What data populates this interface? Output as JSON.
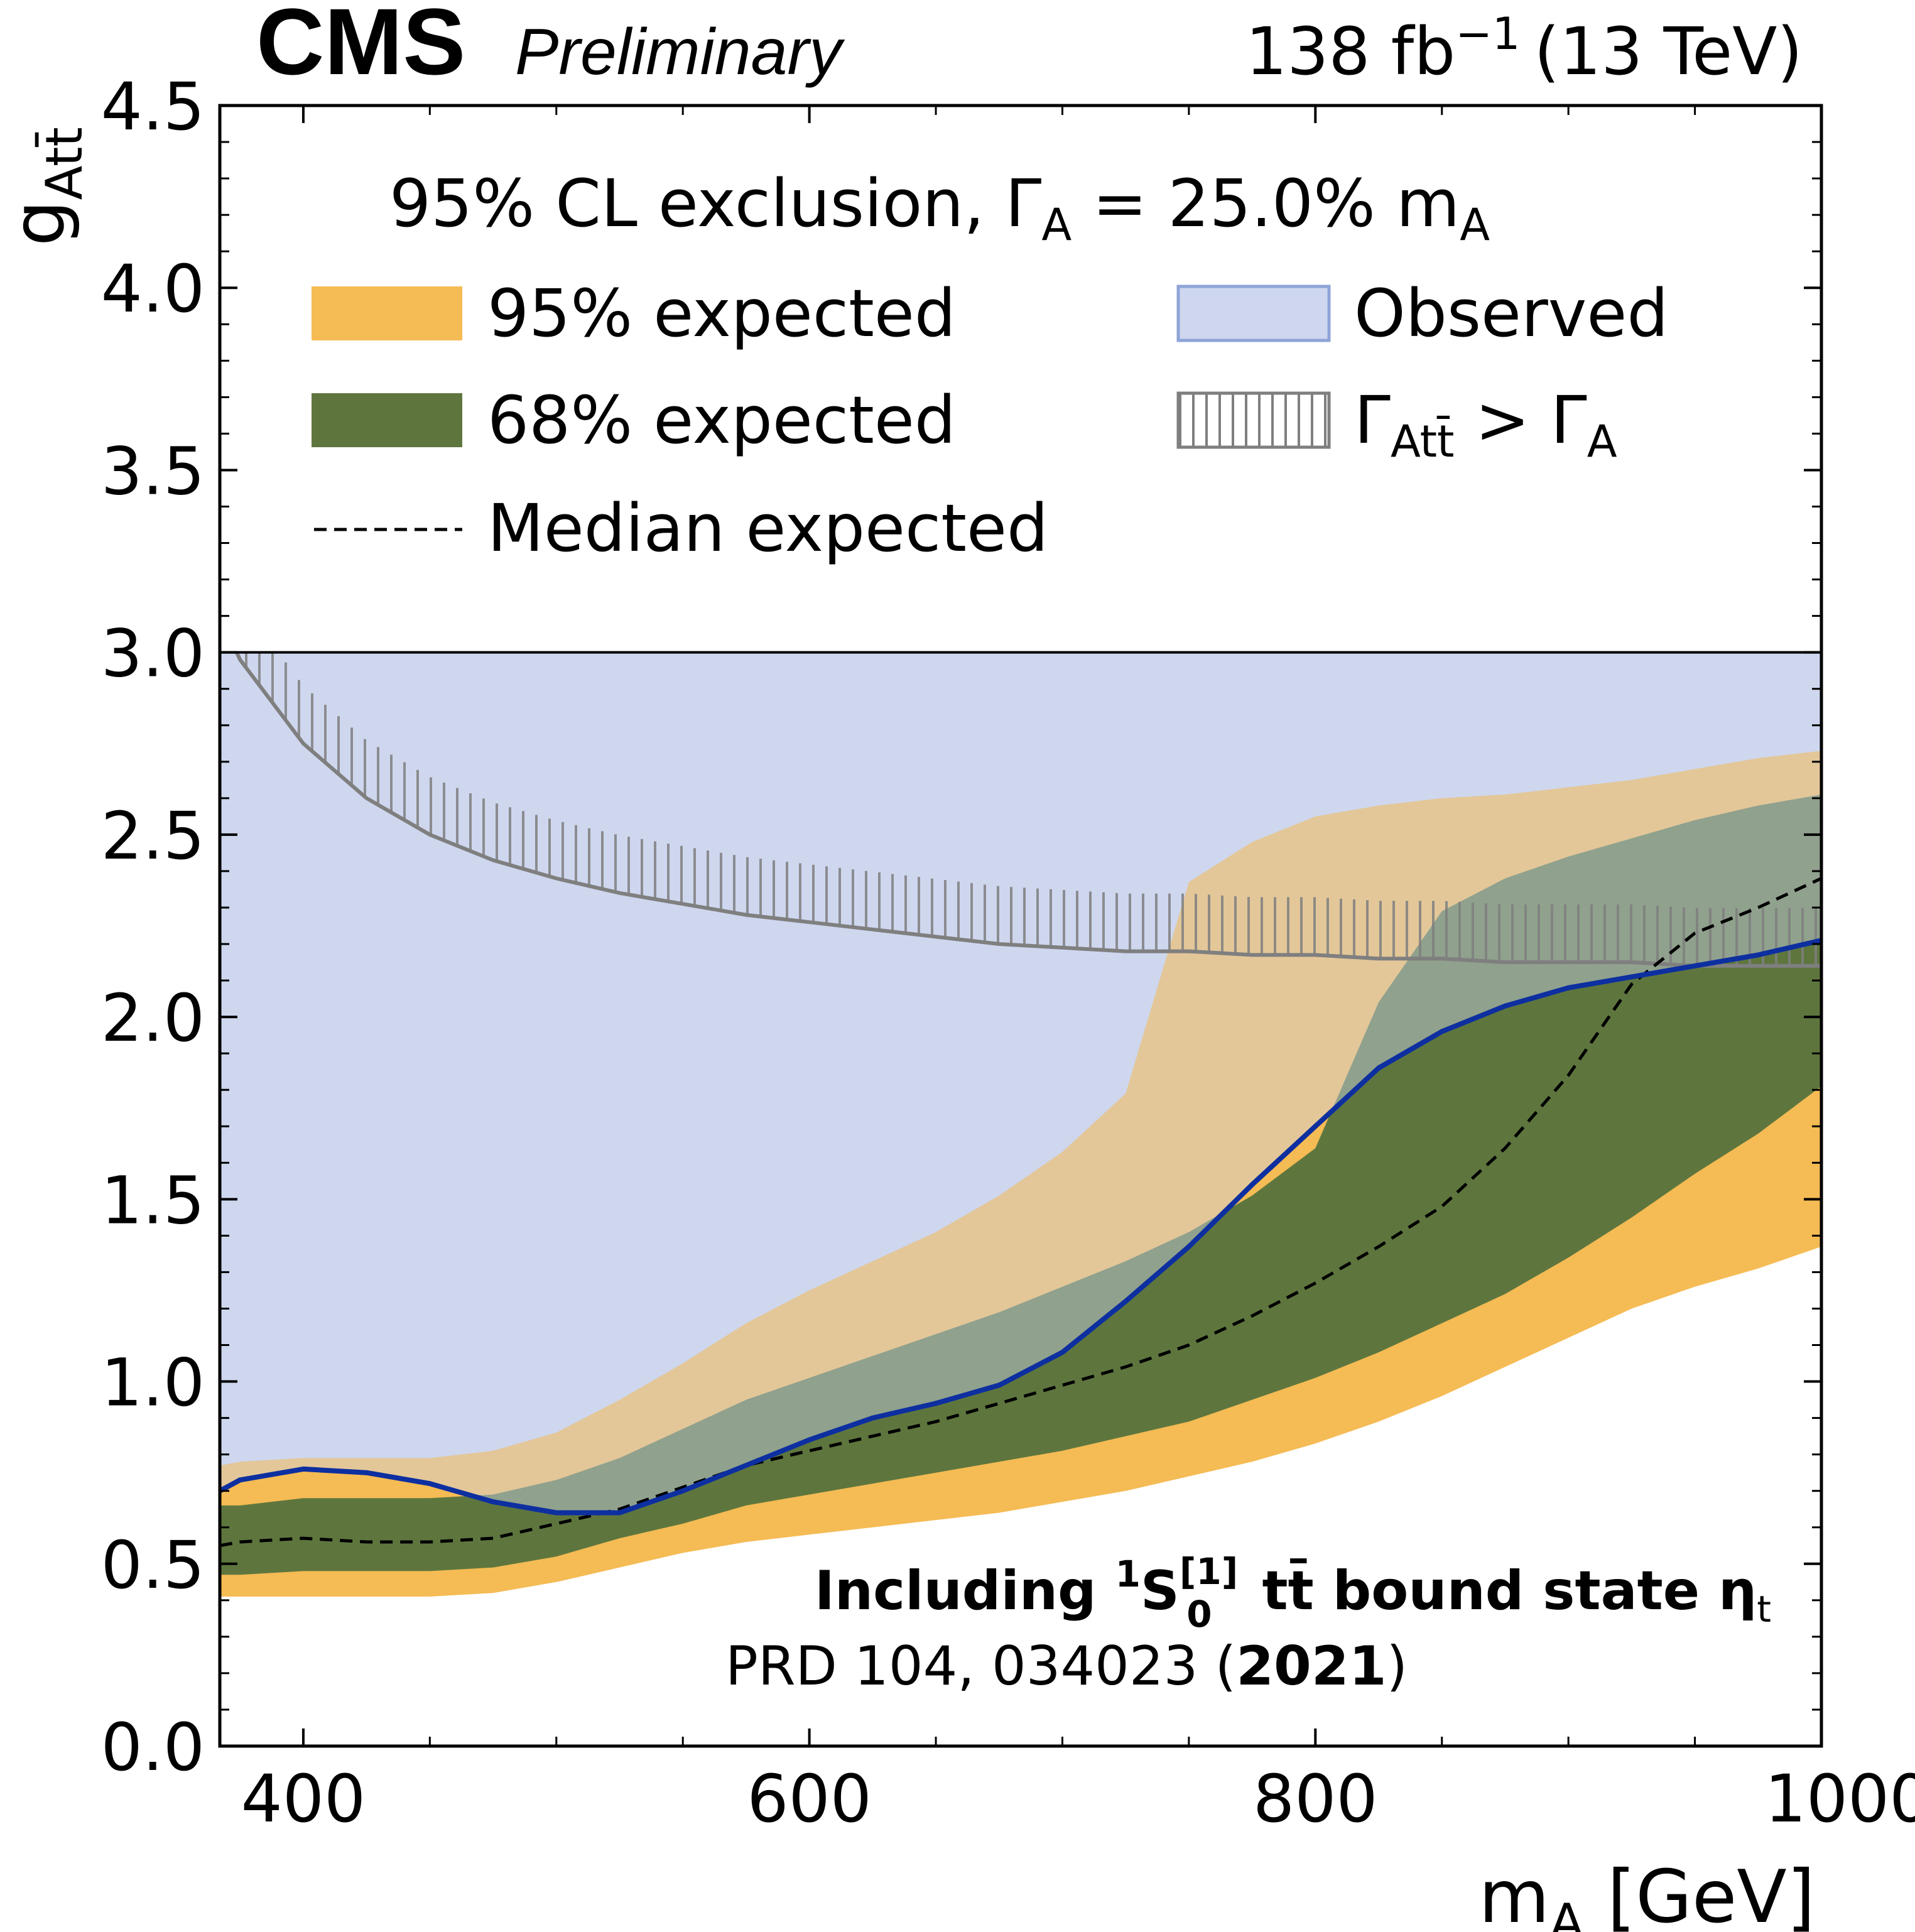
{
  "header": {
    "experiment": "CMS",
    "status": "Preliminary",
    "lumi_base": "138 fb",
    "lumi_exp": "−1",
    "energy": "(13 TeV)"
  },
  "legend": {
    "title_prefix": "95% CL exclusion, Γ",
    "title_sub": "A",
    "title_suffix": " =  25.0% m",
    "title_sub2": "A",
    "entries": {
      "band95": "95% expected",
      "band68": "68% expected",
      "median": "Median expected",
      "observed": "Observed",
      "unphys_prefix": "Γ",
      "unphys_sub": "Att̄",
      "unphys_suffix": " > Γ",
      "unphys_sub2": "A"
    }
  },
  "annotation": {
    "line1_a": "Including ",
    "line1_sup": "1",
    "line1_S": "S",
    "line1_sup2": "[1]",
    "line1_sub": "0",
    "line1_b": " tt̄ bound state η",
    "line1_sub2": "t",
    "line2_a": "PRD 104, 034023 (",
    "line2_bold": "2021",
    "line2_b": ")"
  },
  "axes": {
    "xlabel": "m",
    "xlabel_sub": "A",
    "xlabel_unit": " [GeV]",
    "ylabel": "g",
    "ylabel_sub": "Att̄"
  },
  "colors": {
    "band95": "#f5bb54",
    "band68": "#5e763e",
    "observed_fill": "#ced7ee",
    "observed_line": "#0d2fa0",
    "median_line": "#000000",
    "unphys_line": "#7f7f7f"
  },
  "chart_data": {
    "type": "line",
    "xlim": [
      367,
      1000
    ],
    "ylim": [
      0,
      4.5
    ],
    "x_ticks": [
      "400",
      "600",
      "800",
      "1000"
    ],
    "y_ticks": [
      "0.0",
      "0.5",
      "1.0",
      "1.5",
      "2.0",
      "2.5",
      "3.0",
      "3.5",
      "4.0",
      "4.5"
    ],
    "plot_region_ymax": 3.0,
    "x": [
      367,
      375,
      400,
      425,
      450,
      475,
      500,
      525,
      550,
      575,
      600,
      625,
      650,
      675,
      700,
      725,
      750,
      775,
      800,
      825,
      850,
      875,
      900,
      925,
      950,
      975,
      1000
    ],
    "expected_95_lower": [
      0.41,
      0.41,
      0.41,
      0.41,
      0.41,
      0.42,
      0.45,
      0.49,
      0.53,
      0.56,
      0.58,
      0.6,
      0.62,
      0.64,
      0.67,
      0.7,
      0.74,
      0.78,
      0.83,
      0.89,
      0.96,
      1.04,
      1.12,
      1.2,
      1.26,
      1.31,
      1.37
    ],
    "expected_68_lower": [
      0.47,
      0.47,
      0.48,
      0.48,
      0.48,
      0.49,
      0.52,
      0.57,
      0.61,
      0.66,
      0.69,
      0.72,
      0.75,
      0.78,
      0.81,
      0.85,
      0.89,
      0.95,
      1.01,
      1.08,
      1.16,
      1.24,
      1.34,
      1.45,
      1.57,
      1.68,
      1.81
    ],
    "median_expected": [
      0.55,
      0.56,
      0.57,
      0.56,
      0.56,
      0.57,
      0.61,
      0.65,
      0.71,
      0.77,
      0.81,
      0.85,
      0.89,
      0.94,
      0.99,
      1.04,
      1.1,
      1.18,
      1.27,
      1.37,
      1.48,
      1.64,
      1.84,
      2.09,
      2.23,
      2.3,
      2.38
    ],
    "expected_68_upper": [
      0.66,
      0.66,
      0.68,
      0.68,
      0.68,
      0.69,
      0.73,
      0.79,
      0.87,
      0.95,
      1.01,
      1.07,
      1.13,
      1.19,
      1.26,
      1.33,
      1.41,
      1.51,
      1.64,
      2.04,
      2.29,
      2.38,
      2.44,
      2.49,
      2.54,
      2.58,
      2.61
    ],
    "expected_95_upper": [
      0.77,
      0.78,
      0.79,
      0.79,
      0.79,
      0.81,
      0.86,
      0.95,
      1.05,
      1.16,
      1.25,
      1.33,
      1.41,
      1.51,
      1.63,
      1.79,
      2.37,
      2.48,
      2.55,
      2.58,
      2.6,
      2.61,
      2.63,
      2.65,
      2.68,
      2.71,
      2.73
    ],
    "observed": [
      0.7,
      0.73,
      0.76,
      0.75,
      0.72,
      0.67,
      0.64,
      0.64,
      0.7,
      0.77,
      0.84,
      0.9,
      0.94,
      0.99,
      1.08,
      1.22,
      1.37,
      1.54,
      1.7,
      1.86,
      1.96,
      2.03,
      2.08,
      2.11,
      2.14,
      2.17,
      2.21
    ],
    "unphysical_boundary_x": [
      367,
      375,
      400,
      425,
      450,
      475,
      500,
      525,
      550,
      575,
      600,
      625,
      650,
      675,
      700,
      725,
      750,
      775,
      800,
      825,
      850,
      875,
      900,
      925,
      950,
      975,
      1000
    ],
    "unphysical_boundary_y": [
      3.1,
      2.98,
      2.75,
      2.6,
      2.5,
      2.43,
      2.38,
      2.34,
      2.31,
      2.28,
      2.26,
      2.24,
      2.22,
      2.2,
      2.19,
      2.18,
      2.18,
      2.17,
      2.17,
      2.16,
      2.16,
      2.15,
      2.15,
      2.15,
      2.14,
      2.14,
      2.14
    ],
    "legend_placement": "top (inside plot, above y=3.0)",
    "grid": false
  }
}
